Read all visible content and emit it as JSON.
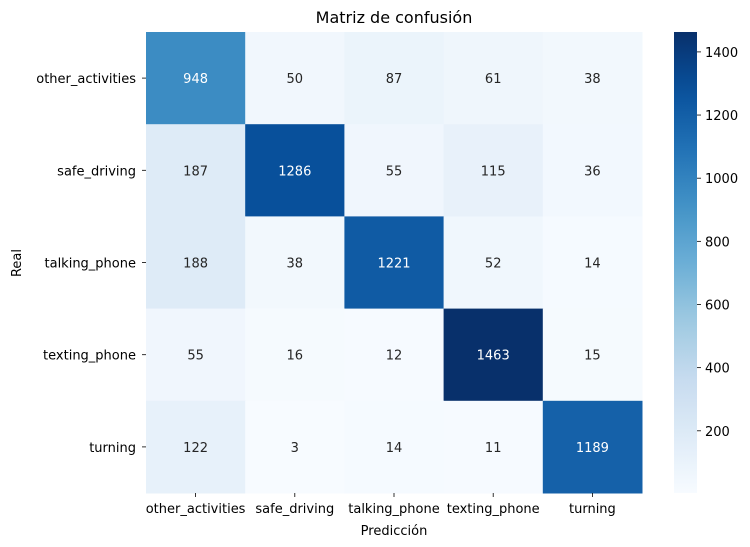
{
  "chart_data": {
    "type": "heatmap",
    "title": "Matriz de confusión",
    "xlabel": "Predicción",
    "ylabel": "Real",
    "x_categories": [
      "other_activities",
      "safe_driving",
      "talking_phone",
      "texting_phone",
      "turning"
    ],
    "y_categories": [
      "other_activities",
      "safe_driving",
      "talking_phone",
      "texting_phone",
      "turning"
    ],
    "values": [
      [
        948,
        50,
        87,
        61,
        38
      ],
      [
        187,
        1286,
        55,
        115,
        36
      ],
      [
        188,
        38,
        1221,
        52,
        14
      ],
      [
        55,
        16,
        12,
        1463,
        15
      ],
      [
        122,
        3,
        14,
        11,
        1189
      ]
    ],
    "colormap": "Blues",
    "colors": {
      "low": "#f7fbff",
      "high": "#08306b"
    },
    "vmin": 3,
    "vmax": 1463,
    "colorbar_ticks": [
      200,
      400,
      600,
      800,
      1000,
      1200,
      1400
    ],
    "annotations": true,
    "grid": false
  }
}
